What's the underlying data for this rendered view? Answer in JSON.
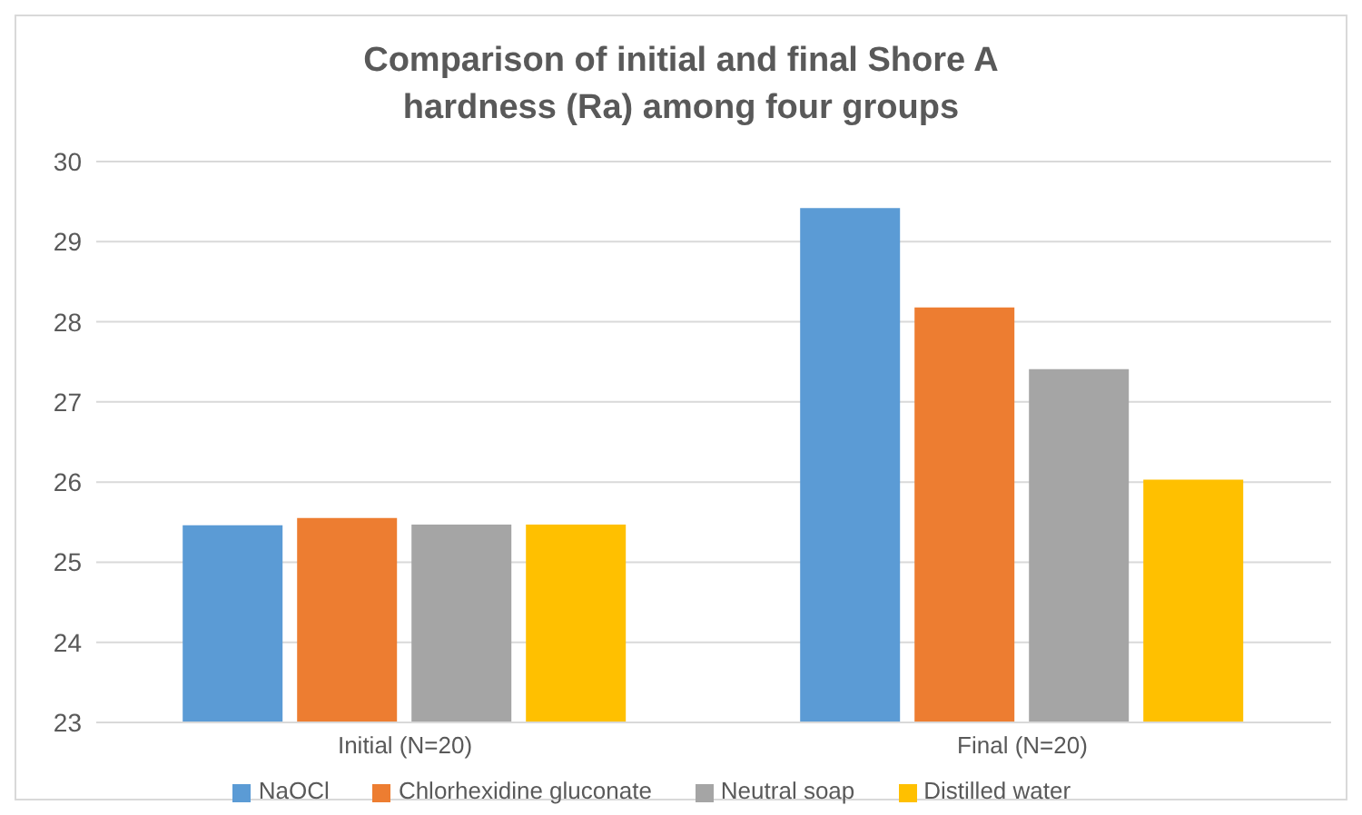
{
  "chart_data": {
    "type": "bar",
    "title": "Comparison of initial and final Shore A hardness (Ra) among four groups",
    "categories": [
      "Initial (N=20)",
      "Final (N=20)"
    ],
    "series": [
      {
        "name": "NaOCl",
        "color": "#5b9bd5",
        "values": [
          25.46,
          29.42
        ]
      },
      {
        "name": "Chlorhexidine gluconate",
        "color": "#ed7d31",
        "values": [
          25.55,
          28.18
        ]
      },
      {
        "name": "Neutral soap",
        "color": "#a5a5a5",
        "values": [
          25.47,
          27.41
        ]
      },
      {
        "name": "Distilled water",
        "color": "#ffc000",
        "values": [
          25.47,
          26.03
        ]
      }
    ],
    "ylim": [
      23,
      30
    ],
    "yticks": [
      23,
      24,
      25,
      26,
      27,
      28,
      29,
      30
    ],
    "grid": "y",
    "legend": "bottom"
  }
}
